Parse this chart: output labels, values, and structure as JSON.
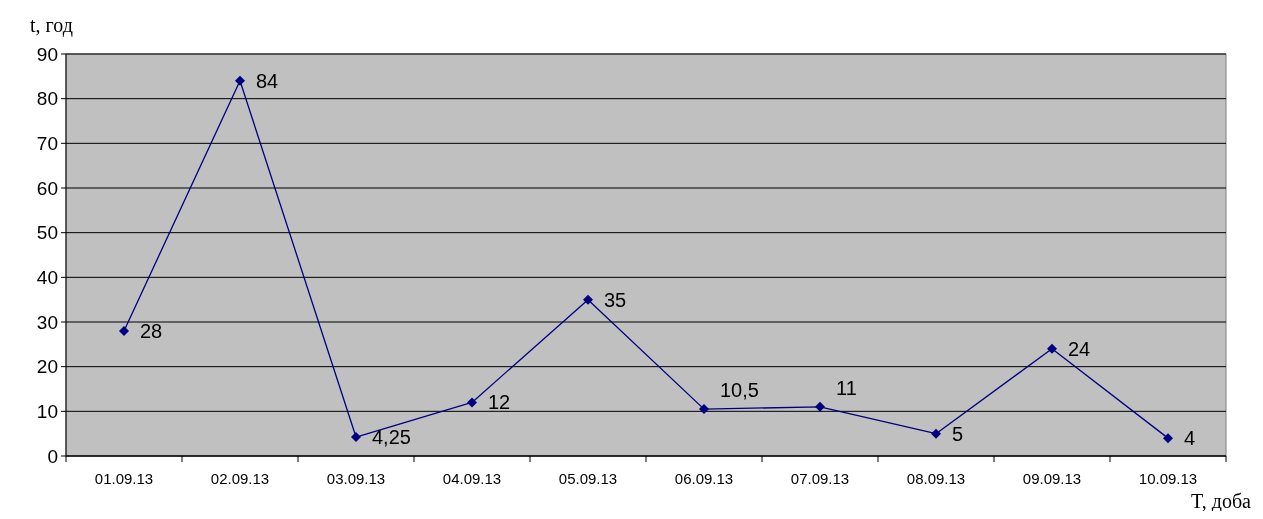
{
  "chart_data": {
    "type": "line",
    "xlabel": "T, доба",
    "ylabel": "t, год",
    "categories": [
      "01.09.13",
      "02.09.13",
      "03.09.13",
      "04.09.13",
      "05.09.13",
      "06.09.13",
      "07.09.13",
      "08.09.13",
      "09.09.13",
      "10.09.13"
    ],
    "series": [
      {
        "color": "#000080",
        "values": [
          28,
          84,
          4.25,
          12,
          35,
          10.5,
          11,
          5,
          24,
          4
        ],
        "value_labels": [
          "28",
          "84",
          "4,25",
          "12",
          "35",
          "10,5",
          "11",
          "5",
          "24",
          "4"
        ]
      }
    ],
    "ylim": [
      0,
      90
    ],
    "yticks": [
      0,
      10,
      20,
      30,
      40,
      50,
      60,
      70,
      80,
      90
    ],
    "grid": "y",
    "marker": "diamond",
    "line_style": "solid"
  }
}
